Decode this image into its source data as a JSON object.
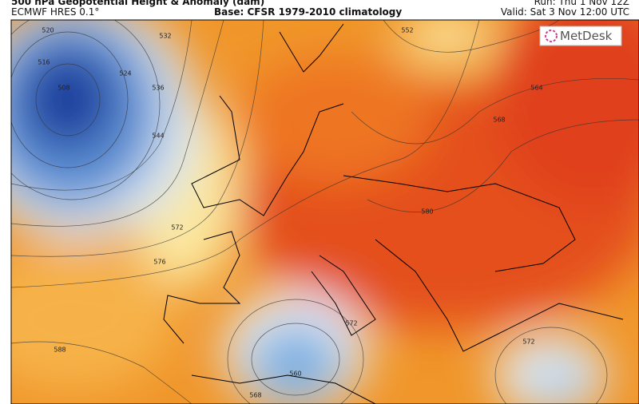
{
  "header": {
    "title": "500 hPa Geopotential Height & Anomaly (dam)",
    "model": "ECMWF HRES 0.1°",
    "base": "Base: CFSR 1979-2010 climatology",
    "run": "Run: Thu 1 Nov 12Z",
    "valid": "Valid: Sat 3 Nov 12:00 UTC"
  },
  "logo": {
    "text": "MetDesk"
  },
  "map": {
    "contour_labels": [
      "520",
      "516",
      "508",
      "524",
      "532",
      "536",
      "544",
      "552",
      "564",
      "568",
      "572",
      "576",
      "580",
      "588",
      "560",
      "568",
      "572",
      "572"
    ]
  }
}
